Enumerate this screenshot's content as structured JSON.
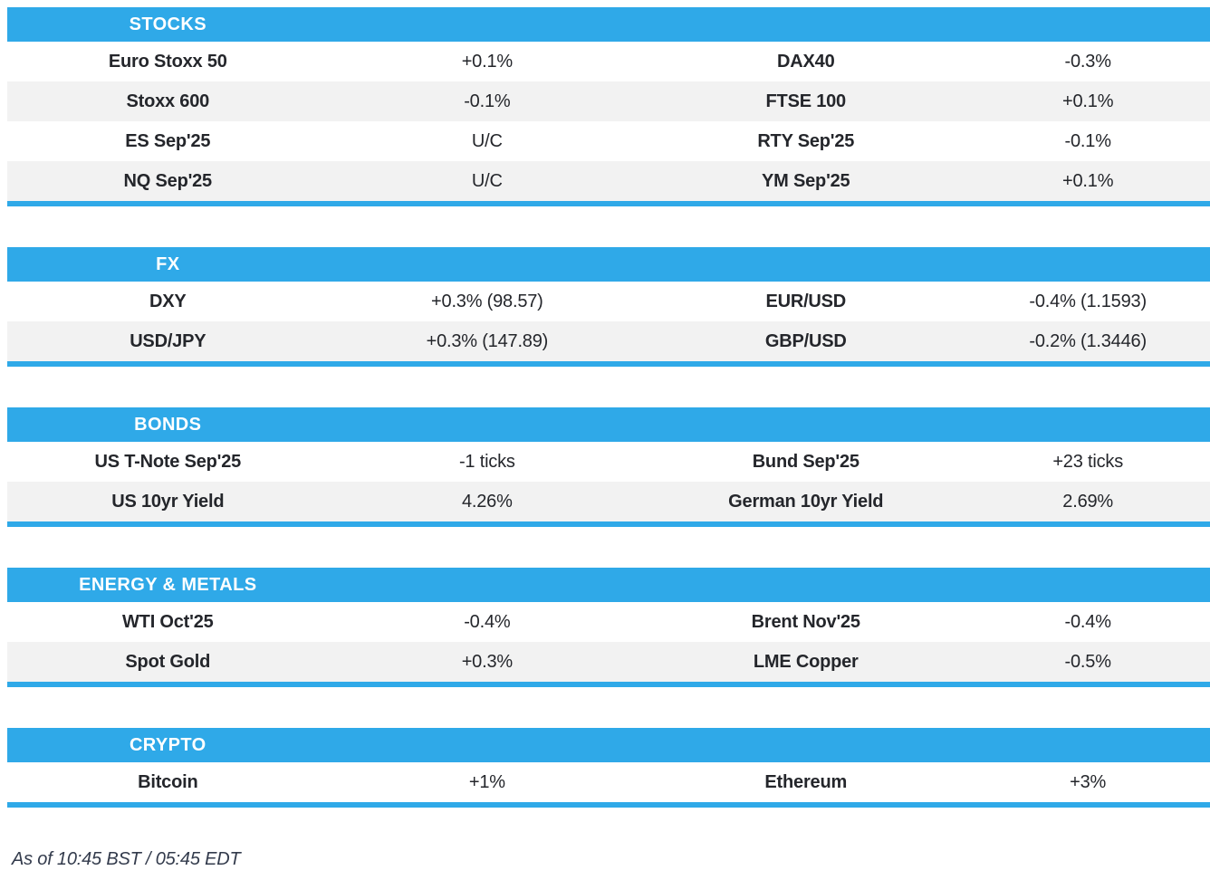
{
  "colors": {
    "accent": "#2FA9E8",
    "row_alt": "#F2F2F2",
    "header_text": "#FFFFFF",
    "body_text": "#24262B",
    "footer_text": "#333B4C"
  },
  "sections": [
    {
      "title": "STOCKS",
      "rows": [
        [
          "Euro Stoxx 50",
          "+0.1%",
          "DAX40",
          "-0.3%"
        ],
        [
          "Stoxx 600",
          "-0.1%",
          "FTSE 100",
          "+0.1%"
        ],
        [
          "ES Sep'25",
          "U/C",
          "RTY Sep'25",
          "-0.1%"
        ],
        [
          "NQ Sep'25",
          "U/C",
          "YM Sep'25",
          "+0.1%"
        ]
      ]
    },
    {
      "title": "FX",
      "rows": [
        [
          "DXY",
          "+0.3% (98.57)",
          "EUR/USD",
          "-0.4% (1.1593)"
        ],
        [
          "USD/JPY",
          "+0.3% (147.89)",
          "GBP/USD",
          "-0.2% (1.3446)"
        ]
      ]
    },
    {
      "title": "BONDS",
      "rows": [
        [
          "US T-Note Sep'25",
          "-1 ticks",
          "Bund Sep'25",
          "+23 ticks"
        ],
        [
          "US 10yr Yield",
          "4.26%",
          "German 10yr Yield",
          "2.69%"
        ]
      ]
    },
    {
      "title": "ENERGY & METALS",
      "rows": [
        [
          "WTI Oct'25",
          "-0.4%",
          "Brent Nov'25",
          "-0.4%"
        ],
        [
          "Spot Gold",
          "+0.3%",
          "LME Copper",
          "-0.5%"
        ]
      ]
    },
    {
      "title": "CRYPTO",
      "rows": [
        [
          "Bitcoin",
          "+1%",
          "Ethereum",
          "+3%"
        ]
      ]
    }
  ],
  "footer": {
    "timestamp_note": "As of 10:45 BST / 05:45 EDT"
  }
}
